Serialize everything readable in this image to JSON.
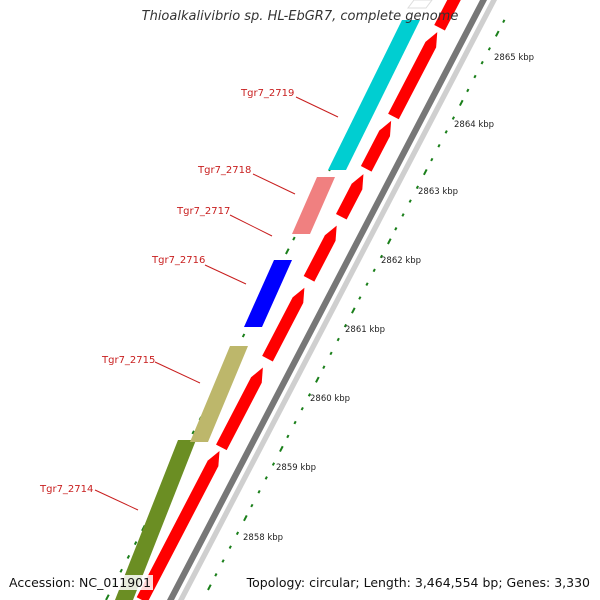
{
  "title": "Thioalkalivibrio sp. HL-EbGR7, complete genome",
  "footer": {
    "accession": "Accession: NC_011901",
    "topology": "Topology: circular; Length: 3,464,554 bp; Genes: 3,330"
  },
  "scale": {
    "unit": "kbp",
    "tick_labels": [
      "2858 kbp",
      "2859 kbp",
      "2860 kbp",
      "2861 kbp",
      "2862 kbp",
      "2863 kbp",
      "2864 kbp",
      "2865 kbp"
    ]
  },
  "genes": [
    {
      "name": "Tgr7_2714",
      "color": "#6b8e23"
    },
    {
      "name": "Tgr7_2715",
      "color": "#bdb76b"
    },
    {
      "name": "Tgr7_2716",
      "color": "#0000ff"
    },
    {
      "name": "Tgr7_2717",
      "color": null
    },
    {
      "name": "Tgr7_2718",
      "color": "#f08080"
    },
    {
      "name": "Tgr7_2719",
      "color": "#00ced1"
    }
  ],
  "colors": {
    "cds_strand": "#ff0000",
    "backbone": "#777777",
    "tick": "#1a7f1a",
    "label": "#c81e1e"
  }
}
